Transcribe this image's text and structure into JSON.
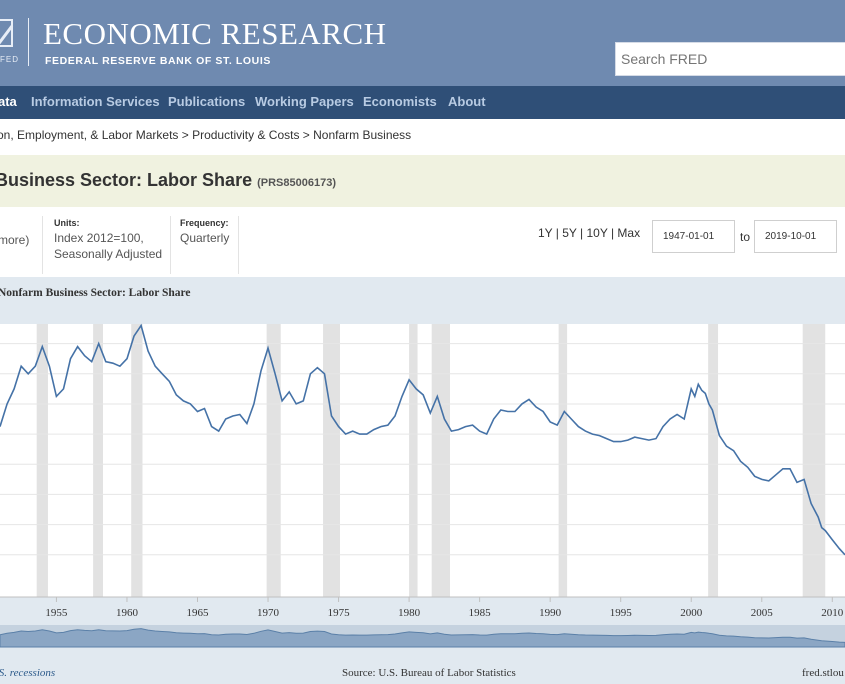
{
  "header": {
    "logo_label": "FED",
    "title": "ECONOMIC RESEARCH",
    "subtitle": "FEDERAL RESERVE BANK OF ST. LOUIS",
    "search_placeholder": "Search FRED"
  },
  "nav": {
    "items": [
      "ata",
      "Information Services",
      "Publications",
      "Working Papers",
      "Economists",
      "About"
    ]
  },
  "breadcrumb": "on, Employment, & Labor Markets > Productivity & Costs > Nonfarm Business",
  "series": {
    "title": "Business Sector: Labor Share",
    "code": "(PRS85006173)"
  },
  "meta": {
    "more_link": "more)",
    "units_label": "Units:",
    "units_value_1": "Index 2012=100,",
    "units_value_2": "Seasonally Adjusted",
    "frequency_label": "Frequency:",
    "frequency_value": "Quarterly",
    "range_links": "1Y | 5Y | 10Y | Max",
    "start_date": "1947-01-01",
    "to_label": "to",
    "end_date": "2019-10-01"
  },
  "chart_data": {
    "type": "line",
    "title": "Nonfarm Business Sector: Labor Share",
    "x_tick_labels": [
      "1955",
      "1960",
      "1965",
      "1970",
      "1975",
      "1980",
      "1985",
      "1990",
      "1995",
      "2000",
      "2005",
      "2010"
    ],
    "x_range": [
      1951.0,
      2010.9
    ],
    "y_range": [
      97.2,
      115.3
    ],
    "grid": true,
    "recessions": [
      [
        1953.6,
        1954.4
      ],
      [
        1957.6,
        1958.3
      ],
      [
        1960.3,
        1961.1
      ],
      [
        1969.9,
        1970.9
      ],
      [
        1973.9,
        1975.1
      ],
      [
        1980.0,
        1980.6
      ],
      [
        1981.6,
        1982.9
      ],
      [
        1990.6,
        1991.2
      ],
      [
        2001.2,
        2001.9
      ],
      [
        2007.9,
        2009.5
      ]
    ],
    "series": [
      {
        "color": "#4572a7",
        "x": [
          1951.0,
          1951.5,
          1952.0,
          1952.5,
          1953.0,
          1953.5,
          1954.0,
          1954.5,
          1955.0,
          1955.5,
          1956.0,
          1956.5,
          1957.0,
          1957.5,
          1958.0,
          1958.5,
          1959.0,
          1959.5,
          1960.0,
          1960.5,
          1961.0,
          1961.5,
          1962.0,
          1962.5,
          1963.0,
          1963.5,
          1964.0,
          1964.5,
          1965.0,
          1965.5,
          1966.0,
          1966.5,
          1967.0,
          1967.5,
          1968.0,
          1968.5,
          1969.0,
          1969.5,
          1970.0,
          1970.5,
          1971.0,
          1971.5,
          1972.0,
          1972.5,
          1973.0,
          1973.5,
          1974.0,
          1974.5,
          1975.0,
          1975.5,
          1976.0,
          1976.5,
          1977.0,
          1977.5,
          1978.0,
          1978.5,
          1979.0,
          1979.5,
          1980.0,
          1980.5,
          1981.0,
          1981.5,
          1982.0,
          1982.5,
          1983.0,
          1983.5,
          1984.0,
          1984.5,
          1985.0,
          1985.5,
          1986.0,
          1986.5,
          1987.0,
          1987.5,
          1988.0,
          1988.5,
          1989.0,
          1989.5,
          1990.0,
          1990.5,
          1991.0,
          1991.5,
          1992.0,
          1992.5,
          1993.0,
          1993.5,
          1994.0,
          1994.5,
          1995.0,
          1995.5,
          1996.0,
          1996.5,
          1997.0,
          1997.5,
          1998.0,
          1998.5,
          1999.0,
          1999.5,
          2000.0,
          2000.25,
          2000.5,
          2000.75,
          2001.0,
          2001.25,
          2001.5,
          2002.0,
          2002.5,
          2003.0,
          2003.5,
          2004.0,
          2004.5,
          2005.0,
          2005.5,
          2006.0,
          2006.5,
          2007.0,
          2007.5,
          2008.0,
          2008.5,
          2009.0,
          2009.25,
          2009.5,
          2010.0,
          2010.5,
          2010.9
        ],
        "y": [
          108.5,
          110.0,
          111.0,
          112.5,
          112.0,
          112.5,
          113.8,
          112.5,
          110.5,
          111.0,
          113.0,
          113.8,
          113.2,
          112.8,
          114.0,
          112.8,
          112.7,
          112.5,
          113.0,
          114.5,
          115.2,
          113.5,
          112.5,
          112.0,
          111.5,
          110.6,
          110.2,
          110.0,
          109.5,
          109.7,
          108.5,
          108.2,
          109.0,
          109.2,
          109.3,
          108.7,
          110.0,
          112.2,
          113.7,
          112.0,
          110.2,
          110.8,
          110.0,
          110.2,
          112.0,
          112.4,
          112.0,
          109.2,
          108.5,
          108.0,
          108.2,
          108.0,
          108.0,
          108.3,
          108.5,
          108.6,
          109.2,
          110.5,
          111.6,
          111.0,
          110.6,
          109.4,
          110.5,
          109.0,
          108.2,
          108.3,
          108.5,
          108.6,
          108.2,
          108.0,
          109.0,
          109.6,
          109.5,
          109.5,
          110.0,
          110.3,
          109.8,
          109.5,
          108.8,
          108.6,
          109.5,
          109.0,
          108.5,
          108.2,
          108.0,
          107.9,
          107.7,
          107.5,
          107.5,
          107.6,
          107.8,
          107.7,
          107.6,
          107.7,
          108.5,
          109.0,
          109.3,
          109.0,
          111.0,
          110.5,
          111.3,
          110.9,
          110.7,
          110.0,
          109.6,
          107.9,
          107.2,
          106.9,
          106.2,
          105.8,
          105.2,
          105.0,
          104.9,
          105.3,
          105.7,
          105.7,
          104.8,
          105.0,
          103.4,
          102.5,
          101.8,
          101.6,
          101.0,
          100.4,
          100.0
        ]
      }
    ]
  },
  "footer": {
    "left": ".S. recessions",
    "source": "Source: U.S. Bureau of Labor Statistics",
    "right": "fred.stlou"
  }
}
